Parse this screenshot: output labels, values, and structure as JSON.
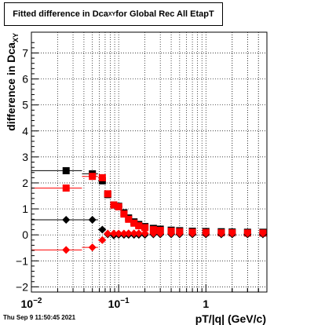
{
  "window": {
    "title_main": "Fitted difference in Dca",
    "title_sub": "XY",
    "title_rest": " for Global Rec All EtapT",
    "timestamp": "Thu Sep  9 11:50:45 2021"
  },
  "chart_data": {
    "type": "scatter",
    "title": "Fitted difference in Dca_XY for Global Rec All EtapT",
    "xlabel": "pT/|q| (GeV/c)",
    "ylabel_main": "difference in Dca",
    "ylabel_sub": "XY",
    "xscale": "log",
    "xlim": [
      0.01,
      5.0
    ],
    "ylim": [
      -2.2,
      7.8
    ],
    "grid": true,
    "x_tick_labels": [
      {
        "label_base": "10",
        "label_exp": "−2",
        "value": 0.01
      },
      {
        "label_base": "10",
        "label_exp": "−1",
        "value": 0.1
      },
      {
        "label_base": "1",
        "label_exp": "",
        "value": 1
      }
    ],
    "y_ticks": [
      -2,
      -1,
      0,
      1,
      2,
      3,
      4,
      5,
      6,
      7
    ],
    "y_tick_labels": [
      "−2",
      "−1",
      "0",
      "1",
      "2",
      "3",
      "4",
      "5",
      "6",
      "7"
    ],
    "series": [
      {
        "marker": "square",
        "color": "#000000",
        "points": [
          [
            0.025,
            2.47
          ],
          [
            0.05,
            2.35
          ],
          [
            0.065,
            2.08
          ],
          [
            0.075,
            1.55
          ],
          [
            0.088,
            1.15
          ],
          [
            0.1,
            1.1
          ],
          [
            0.115,
            0.85
          ],
          [
            0.13,
            0.65
          ],
          [
            0.15,
            0.5
          ],
          [
            0.17,
            0.4
          ],
          [
            0.2,
            0.32
          ],
          [
            0.25,
            0.25
          ],
          [
            0.3,
            0.22
          ],
          [
            0.4,
            0.18
          ],
          [
            0.5,
            0.16
          ],
          [
            0.7,
            0.14
          ],
          [
            1.0,
            0.13
          ],
          [
            1.5,
            0.12
          ],
          [
            2.0,
            0.11
          ],
          [
            3.0,
            0.1
          ],
          [
            4.5,
            0.1
          ]
        ],
        "xerr": [
          [
            0.0,
            0.038
          ],
          [
            0.038,
            0.058
          ],
          [
            0.058,
            0.07
          ],
          [
            0.07,
            0.082
          ],
          [
            0.082,
            0.095
          ],
          [
            0.095,
            0.11
          ]
        ]
      },
      {
        "marker": "square",
        "color": "#ff0000",
        "points": [
          [
            0.025,
            1.8
          ],
          [
            0.05,
            2.25
          ],
          [
            0.065,
            2.2
          ],
          [
            0.075,
            1.58
          ],
          [
            0.088,
            1.15
          ],
          [
            0.1,
            1.08
          ],
          [
            0.115,
            0.8
          ],
          [
            0.13,
            0.6
          ],
          [
            0.15,
            0.45
          ],
          [
            0.17,
            0.35
          ],
          [
            0.2,
            0.28
          ],
          [
            0.25,
            0.2
          ],
          [
            0.3,
            0.17
          ],
          [
            0.4,
            0.14
          ],
          [
            0.5,
            0.12
          ],
          [
            0.7,
            0.1
          ],
          [
            1.0,
            0.09
          ],
          [
            1.5,
            0.08
          ],
          [
            2.0,
            0.08
          ],
          [
            3.0,
            0.07
          ],
          [
            4.5,
            0.07
          ]
        ],
        "xerr": [
          [
            0.0,
            0.038
          ],
          [
            0.038,
            0.058
          ],
          [
            0.058,
            0.07
          ],
          [
            0.07,
            0.082
          ],
          [
            0.082,
            0.095
          ],
          [
            0.095,
            0.11
          ]
        ]
      },
      {
        "marker": "diamond",
        "color": "#000000",
        "points": [
          [
            0.025,
            0.58
          ],
          [
            0.05,
            0.58
          ],
          [
            0.065,
            0.2
          ],
          [
            0.075,
            0.02
          ],
          [
            0.088,
            -0.02
          ],
          [
            0.1,
            0.0
          ],
          [
            0.115,
            0.0
          ],
          [
            0.13,
            0.0
          ],
          [
            0.15,
            0.0
          ],
          [
            0.17,
            0.0
          ],
          [
            0.2,
            0.0
          ],
          [
            0.25,
            0.02
          ],
          [
            0.3,
            0.02
          ],
          [
            0.4,
            0.02
          ],
          [
            0.5,
            0.02
          ],
          [
            0.7,
            0.02
          ],
          [
            1.0,
            0.02
          ],
          [
            1.5,
            0.02
          ],
          [
            2.0,
            0.02
          ],
          [
            3.0,
            0.02
          ],
          [
            4.5,
            0.02
          ]
        ],
        "xerr": [
          [
            0.0,
            0.038
          ],
          [
            0.038,
            0.058
          ],
          [
            0.058,
            0.07
          ],
          [
            0.07,
            0.082
          ]
        ]
      },
      {
        "marker": "diamond",
        "color": "#ff0000",
        "points": [
          [
            0.025,
            -0.58
          ],
          [
            0.05,
            -0.48
          ],
          [
            0.065,
            -0.2
          ],
          [
            0.075,
            0.05
          ],
          [
            0.088,
            0.05
          ],
          [
            0.1,
            0.05
          ],
          [
            0.115,
            0.05
          ],
          [
            0.13,
            0.06
          ],
          [
            0.15,
            0.06
          ],
          [
            0.17,
            0.06
          ],
          [
            0.2,
            0.06
          ],
          [
            0.25,
            0.06
          ],
          [
            0.3,
            0.06
          ],
          [
            0.4,
            0.06
          ],
          [
            0.5,
            0.06
          ],
          [
            0.7,
            0.06
          ],
          [
            1.0,
            0.06
          ],
          [
            1.5,
            0.06
          ],
          [
            2.0,
            0.06
          ],
          [
            3.0,
            0.06
          ],
          [
            4.5,
            0.06
          ]
        ],
        "xerr": [
          [
            0.0,
            0.038
          ],
          [
            0.038,
            0.058
          ],
          [
            0.058,
            0.07
          ],
          [
            0.07,
            0.082
          ]
        ]
      }
    ]
  }
}
